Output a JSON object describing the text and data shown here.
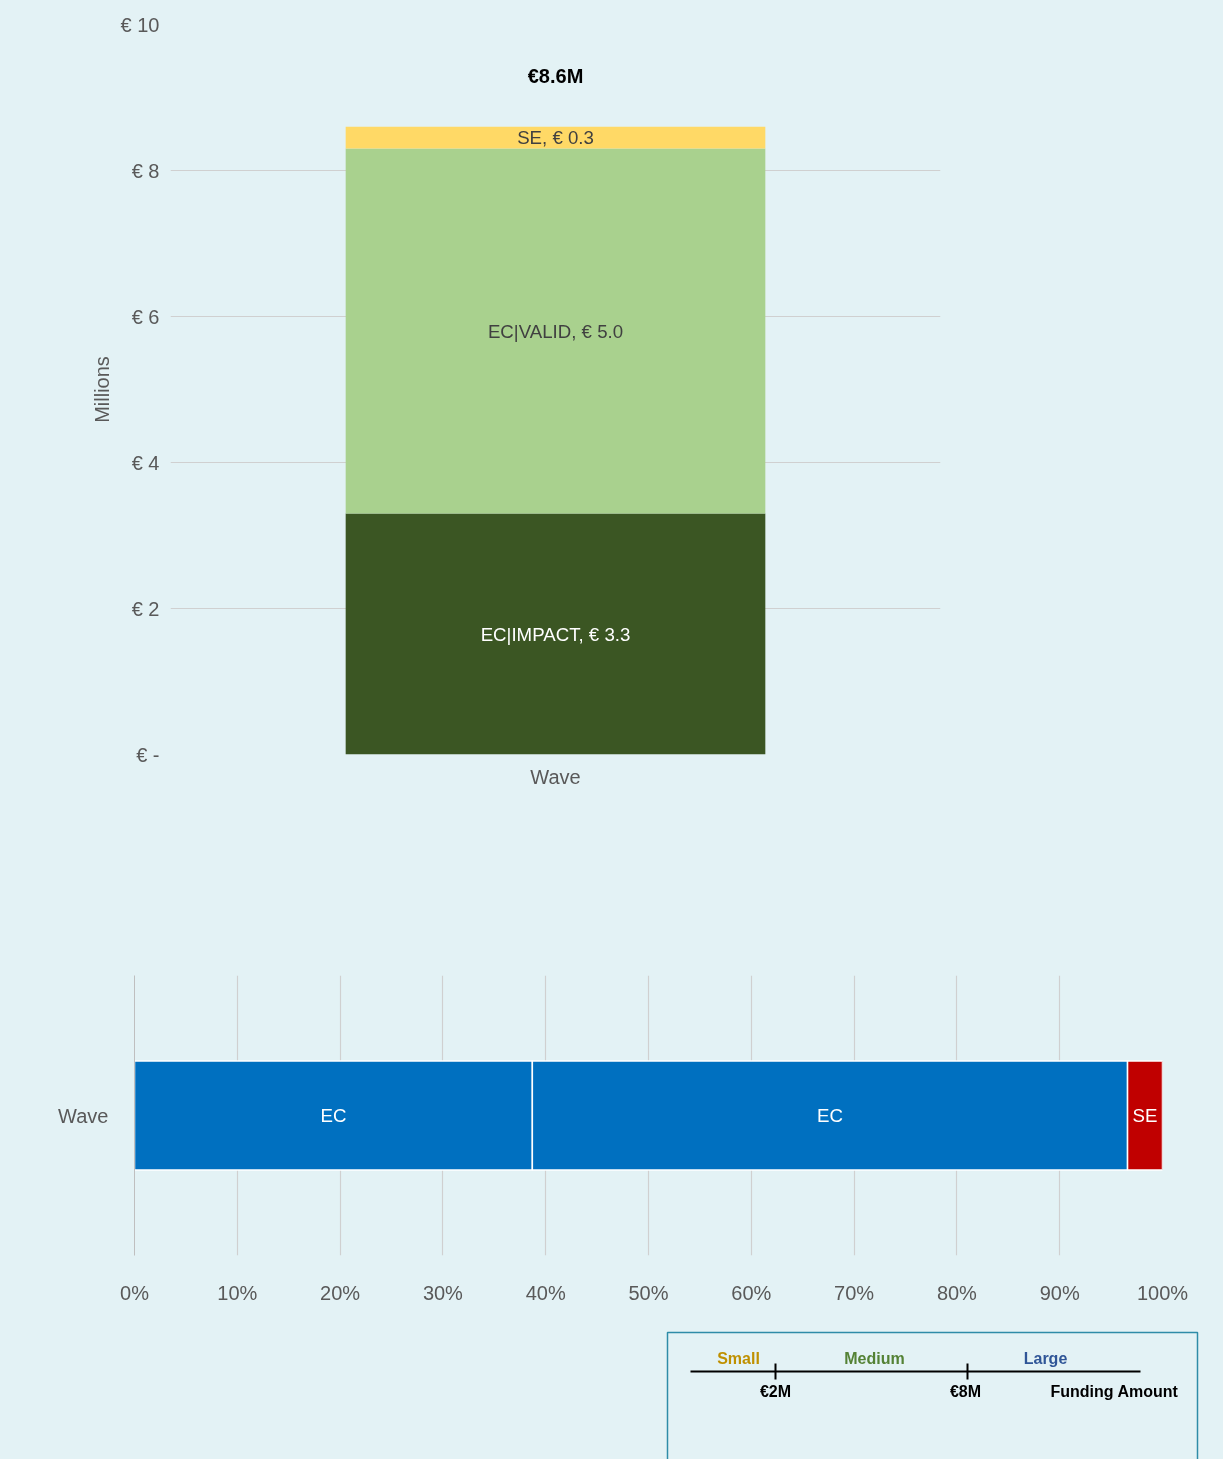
{
  "chart_data": [
    {
      "type": "bar",
      "stacked": true,
      "categories": [
        "Wave"
      ],
      "ylabel": "Millions",
      "ylim": [
        0,
        10
      ],
      "yticks": [
        {
          "value": 0,
          "label": "€ -"
        },
        {
          "value": 2,
          "label": "€ 2"
        },
        {
          "value": 4,
          "label": "€ 4"
        },
        {
          "value": 6,
          "label": "€ 6"
        },
        {
          "value": 8,
          "label": "€ 8"
        },
        {
          "value": 10,
          "label": "€ 10"
        }
      ],
      "grid": "y",
      "totals": [
        "€8.6M"
      ],
      "series": [
        {
          "color": "#3b5623",
          "values": [
            3.3
          ],
          "value_labels": [
            "EC|IMPACT, € 3.3"
          ]
        },
        {
          "color": "#a9d18e",
          "values": [
            5.0
          ],
          "value_labels": [
            "EC|VALID, € 5.0"
          ]
        },
        {
          "color": "#ffd966",
          "values": [
            0.3
          ],
          "value_labels": [
            "SE, € 0.3"
          ]
        }
      ]
    },
    {
      "type": "bar",
      "stacked": true,
      "orientation": "horizontal",
      "categories": [
        "Wave"
      ],
      "xlim": [
        0,
        100
      ],
      "xticks": [
        {
          "value": 0,
          "label": "0%"
        },
        {
          "value": 10,
          "label": "10%"
        },
        {
          "value": 20,
          "label": "20%"
        },
        {
          "value": 30,
          "label": "30%"
        },
        {
          "value": 40,
          "label": "40%"
        },
        {
          "value": 50,
          "label": "50%"
        },
        {
          "value": 60,
          "label": "60%"
        },
        {
          "value": 70,
          "label": "70%"
        },
        {
          "value": 80,
          "label": "80%"
        },
        {
          "value": 90,
          "label": "90%"
        },
        {
          "value": 100,
          "label": "100%"
        }
      ],
      "grid": "x",
      "series": [
        {
          "color": "#0070c0",
          "values": [
            38.7
          ],
          "value_labels": [
            "EC"
          ]
        },
        {
          "color": "#0070c0",
          "values": [
            57.9
          ],
          "value_labels": [
            "EC"
          ]
        },
        {
          "color": "#c00000",
          "values": [
            3.4
          ],
          "value_labels": [
            "SE"
          ]
        }
      ]
    },
    {
      "type": "other",
      "annotations": [
        "Small",
        "Medium",
        "Large",
        "€2M",
        "€8M",
        "Funding Amount"
      ]
    }
  ]
}
